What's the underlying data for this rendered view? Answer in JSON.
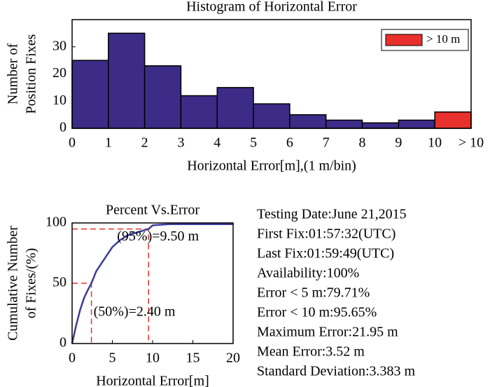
{
  "chart_data": [
    {
      "type": "histogram",
      "title": "Histogram of Horizontal Error",
      "xlabel": "Horizontal Error[m],(1 m/bin)",
      "ylabel": [
        "Number of",
        "Position Fixes"
      ],
      "bins": [
        0,
        1,
        2,
        3,
        4,
        5,
        6,
        7,
        8,
        9,
        10,
        11
      ],
      "values": [
        25,
        35,
        23,
        12,
        15,
        9,
        5,
        3,
        2,
        3,
        6
      ],
      "bar_colors": [
        "#3c2b87",
        "#3c2b87",
        "#3c2b87",
        "#3c2b87",
        "#3c2b87",
        "#3c2b87",
        "#3c2b87",
        "#3c2b87",
        "#3c2b87",
        "#3c2b87",
        "#e8302c"
      ],
      "legend": [
        {
          "name": "> 10 m",
          "color": "#e8302c"
        }
      ],
      "legend_position": "upper right",
      "xlim": [
        0,
        11
      ],
      "ylim": [
        0,
        40
      ],
      "xticks": [
        0,
        1,
        2,
        3,
        4,
        5,
        6,
        7,
        8,
        9,
        10,
        {
          "value": 11,
          "label": "> 10"
        }
      ],
      "yticks": [
        0,
        10,
        20,
        30
      ]
    },
    {
      "type": "line",
      "title": "Percent Vs.Error",
      "xlabel": "Horizontal Error[m]",
      "ylabel": [
        "Cumulative Number",
        "of Fixes/(%)"
      ],
      "x": [
        0,
        0.5,
        1,
        1.5,
        2,
        2.4,
        3,
        4,
        5,
        6,
        7,
        8,
        9,
        9.5,
        10,
        12,
        20
      ],
      "values": [
        0,
        15,
        28,
        38,
        45,
        50,
        60,
        70,
        80,
        86,
        90,
        92,
        94,
        95,
        98,
        99,
        99
      ],
      "color": "#3c3c9a",
      "reference_points": [
        {
          "x": 2.4,
          "y": 50,
          "label": "(50%)=2.40 m"
        },
        {
          "x": 9.5,
          "y": 95,
          "label": "(95%)=9.50 m"
        }
      ],
      "reference_color": "#e8302c",
      "xlim": [
        0,
        20
      ],
      "ylim": [
        0,
        100
      ],
      "xticks": [
        0,
        5,
        10,
        15,
        20
      ],
      "yticks": [
        0,
        50,
        100
      ]
    }
  ],
  "stats": [
    "Testing Date:June 21,2015",
    "First Fix:01:57:32(UTC)",
    "Last Fix:01:59:49(UTC)",
    "Availability:100%",
    "Error < 5 m:79.71%",
    "Error < 10 m:95.65%",
    "Maximum Error:21.95 m",
    "Mean Error:3.52 m",
    "Standard Deviation:3.383 m"
  ]
}
